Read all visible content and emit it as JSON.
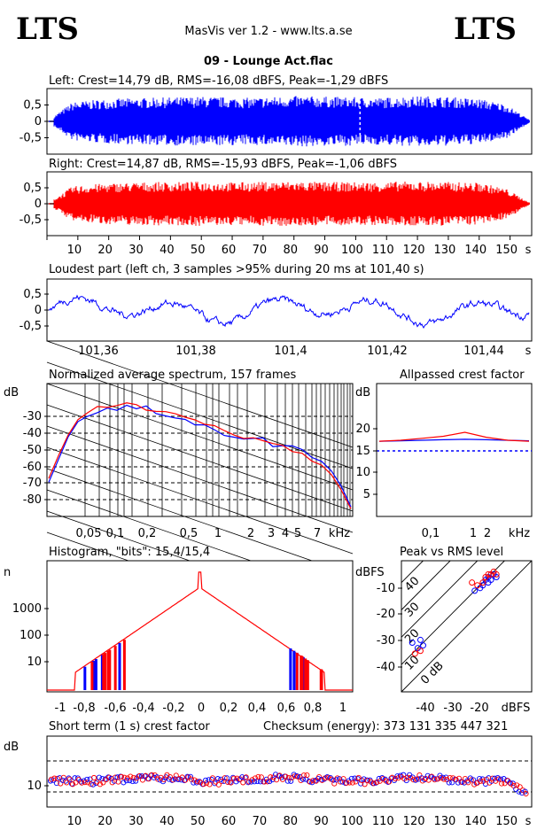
{
  "header": {
    "brand_left": "LTS",
    "brand_right": "LTS",
    "app_title": "MasVis ver 1.2 - www.lts.a.se",
    "file_title": "09 - Lounge Act.flac"
  },
  "colors": {
    "left": "#0000ff",
    "right": "#ff0000",
    "axis": "#000000"
  },
  "chart_data": [
    {
      "id": "left_wave",
      "type": "area",
      "title": "Left: Crest=14,79 dB, RMS=-16,08 dBFS, Peak=-1,29 dBFS",
      "y_ticks": [
        "0,5",
        "0",
        "-0,5"
      ],
      "ylim": [
        -1,
        1
      ],
      "xlim": [
        0,
        157
      ],
      "marker_x": 101.4,
      "series": [
        {
          "values_envelope": [
            0.0,
            0.62,
            0.7,
            0.74,
            0.76,
            0.78,
            0.8,
            0.78,
            0.76,
            0.8,
            0.82,
            0.8,
            0.78,
            0.76,
            0.8,
            0.82,
            0.78,
            0.72,
            0.55,
            0.0
          ]
        }
      ]
    },
    {
      "id": "right_wave",
      "type": "area",
      "title": "Right: Crest=14,87 dB, RMS=-15,93 dBFS, Peak=-1,06 dBFS",
      "y_ticks": [
        "0,5",
        "0",
        "-0,5"
      ],
      "ylim": [
        -1,
        1
      ],
      "xlim": [
        0,
        157
      ],
      "x_ticks": [
        "10",
        "20",
        "30",
        "40",
        "50",
        "60",
        "70",
        "80",
        "90",
        "100",
        "110",
        "120",
        "130",
        "140",
        "150",
        "s"
      ],
      "series": [
        {
          "values_envelope": [
            0.0,
            0.58,
            0.66,
            0.7,
            0.72,
            0.72,
            0.74,
            0.72,
            0.72,
            0.74,
            0.74,
            0.72,
            0.72,
            0.72,
            0.74,
            0.74,
            0.72,
            0.7,
            0.5,
            0.0
          ]
        }
      ]
    },
    {
      "id": "loudest",
      "type": "line",
      "title": "Loudest part (left  ch, 3 samples >95% during 20 ms at 101,40 s)",
      "y_ticks": [
        "0,5",
        "0",
        "-0,5"
      ],
      "x_ticks": [
        "101,36",
        "101,38",
        "101,4",
        "101,42",
        "101,44",
        "s"
      ],
      "xlim": [
        101.35,
        101.45
      ],
      "ylim": [
        -1,
        1
      ]
    },
    {
      "id": "spectrum",
      "type": "line",
      "title": "Normalized average spectrum, 157 frames",
      "ylabel": "dB",
      "y_ticks": [
        "-30",
        "-40",
        "-50",
        "-60",
        "-70",
        "-80"
      ],
      "x_ticks": [
        "0,05",
        "0,1",
        "0,2",
        "0,5",
        "1",
        "2",
        "3",
        "4",
        "5",
        "7",
        "kHz"
      ],
      "ylim": [
        -90,
        -20
      ],
      "series": [
        {
          "values": [
            -72,
            -60,
            -48,
            -40,
            -37,
            -35,
            -34,
            -33,
            -32,
            -32,
            -33,
            -35,
            -37,
            -38,
            -40,
            -41,
            -42,
            -44,
            -46,
            -47,
            -48,
            -49,
            -50,
            -52,
            -53,
            -54,
            -56,
            -58,
            -61,
            -66,
            -74,
            -85
          ]
        },
        {
          "values": [
            -70,
            -58,
            -47,
            -39,
            -36,
            -33,
            -32,
            -31,
            -30,
            -31,
            -33,
            -34,
            -36,
            -37,
            -39,
            -40,
            -42,
            -43,
            -45,
            -46,
            -48,
            -49,
            -51,
            -52,
            -53,
            -55,
            -57,
            -60,
            -63,
            -68,
            -76,
            -86
          ]
        }
      ]
    },
    {
      "id": "crest",
      "type": "line",
      "title": "Allpassed crest factor",
      "ylabel": "dB",
      "y_ticks": [
        "20",
        "15",
        "10",
        "5"
      ],
      "x_ticks": [
        "0,1",
        "1",
        "2",
        "kHz"
      ],
      "ylim": [
        0,
        25
      ],
      "series": [
        {
          "values": [
            14.8,
            14.9,
            15.0,
            15.1,
            15.2,
            15.1,
            15.0,
            14.9
          ]
        },
        {
          "values": [
            14.8,
            15.0,
            15.4,
            15.8,
            16.6,
            15.6,
            15.0,
            14.8
          ]
        }
      ]
    },
    {
      "id": "histogram",
      "type": "line",
      "title": "Histogram, \"bits\": 15,4/15,4",
      "ylabel": "n",
      "y_ticks": [
        "1000",
        "100",
        "10"
      ],
      "x_ticks": [
        "-1",
        "-0,8",
        "-0,6",
        "-0,4",
        "-0,2",
        "0",
        "0,2",
        "0,4",
        "0,6",
        "0,8",
        "1"
      ],
      "xlim": [
        -1.1,
        1.1
      ]
    },
    {
      "id": "peak_rms",
      "type": "scatter",
      "title": "Peak vs RMS level",
      "ylabel": "dBFS",
      "y_ticks": [
        "-10",
        "-20",
        "-30",
        "-40"
      ],
      "x_ticks": [
        "-40",
        "-30",
        "-20",
        "dBFS"
      ],
      "diag_labels": [
        "40",
        "30",
        "20",
        "10",
        "0 dB"
      ],
      "xlim": [
        -48,
        0
      ],
      "ylim": [
        -48,
        0
      ],
      "series": [
        {
          "x": [
            -16,
            -15,
            -14,
            -13,
            -15,
            -17,
            -16,
            -18,
            -19,
            -21,
            -44,
            -42,
            -40,
            -41
          ],
          "y": [
            -6,
            -5,
            -5,
            -6,
            -7,
            -7,
            -8,
            -9,
            -10,
            -11,
            -30,
            -32,
            -31,
            -29
          ]
        },
        {
          "x": [
            -15,
            -14,
            -13,
            -16,
            -17,
            -18,
            -20,
            -22,
            -43,
            -41
          ],
          "y": [
            -5,
            -4,
            -5,
            -5,
            -6,
            -8,
            -9,
            -8,
            -34,
            -33
          ]
        }
      ]
    },
    {
      "id": "short_crest",
      "type": "scatter",
      "title": "Short term (1 s) crest factor",
      "checksum": "Checksum (energy):   373 131 335 447 321",
      "ylabel": "dB",
      "y_ticks": [
        "10"
      ],
      "x_ticks": [
        "10",
        "20",
        "30",
        "40",
        "50",
        "60",
        "70",
        "80",
        "90",
        "100",
        "110",
        "120",
        "130",
        "140",
        "150",
        "s"
      ],
      "xlim": [
        0,
        157
      ]
    }
  ]
}
